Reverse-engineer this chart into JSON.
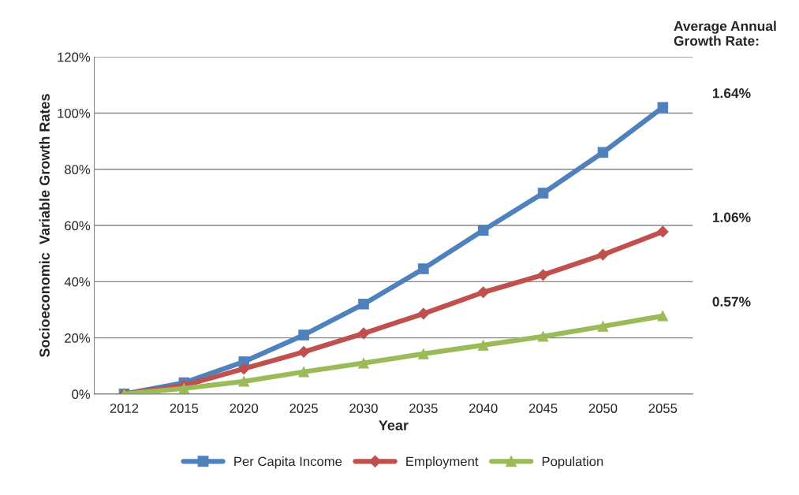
{
  "chart_data": {
    "type": "line",
    "xlabel": "Year",
    "ylabel": "Socioeconomic  Variable Growth Rates",
    "categories": [
      "2012",
      "2015",
      "2020",
      "2025",
      "2030",
      "2035",
      "2040",
      "2045",
      "2050",
      "2055"
    ],
    "series": [
      {
        "name": "Per Capita Income",
        "color": "#4f81bd",
        "marker": "square",
        "values": [
          0,
          4,
          11.5,
          21,
          32,
          44.6,
          58.3,
          71.5,
          86,
          102
        ]
      },
      {
        "name": "Employment",
        "color": "#c0504d",
        "marker": "diamond",
        "values": [
          0,
          3,
          9,
          15,
          21.6,
          28.6,
          36.2,
          42.4,
          49.6,
          57.8
        ]
      },
      {
        "name": "Population",
        "color": "#9bbb59",
        "marker": "triangle",
        "values": [
          0,
          2,
          4.5,
          7.9,
          11,
          14.3,
          17.4,
          20.5,
          24.1,
          27.8
        ]
      }
    ],
    "ylim": [
      0,
      120
    ],
    "yticks": [
      {
        "value": 0,
        "label": "0%"
      },
      {
        "value": 20,
        "label": "20%"
      },
      {
        "value": 40,
        "label": "40%"
      },
      {
        "value": 60,
        "label": "60%"
      },
      {
        "value": 80,
        "label": "80%"
      },
      {
        "value": 100,
        "label": "100%"
      },
      {
        "value": 120,
        "label": "120%"
      }
    ],
    "grid": "y",
    "legend": "bottom",
    "line_style": "solid",
    "annotations": [
      "Average Annual Growth Rate:",
      "1.64%",
      "1.06%",
      "0.57%"
    ]
  }
}
